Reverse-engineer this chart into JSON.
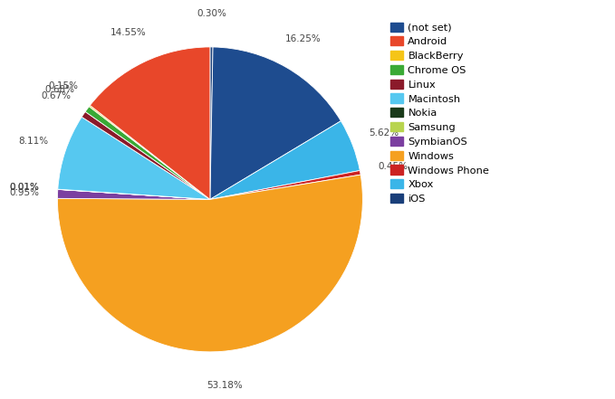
{
  "labels": [
    "(not set)",
    "Android",
    "BlackBerry",
    "Chrome OS",
    "Linux",
    "Macintosh",
    "Nokia",
    "Samsung",
    "SymbianOS",
    "Windows",
    "Windows Phone",
    "Xbox",
    "iOS"
  ],
  "values": [
    16.25,
    14.55,
    0.15,
    0.68,
    0.67,
    8.11,
    0.01,
    0.01,
    0.95,
    53.18,
    0.45,
    5.62,
    0.3
  ],
  "colors": [
    "#1e4c8f",
    "#e8472a",
    "#f5c518",
    "#3aaa35",
    "#8b1a2a",
    "#56c8f0",
    "#1a3a1a",
    "#b8d44e",
    "#7b3fa0",
    "#f5a020",
    "#cc2222",
    "#3ab5e8",
    "#1a3f7a"
  ],
  "display_pcts": [
    "16.25%",
    "14.55%",
    "0.15%",
    "0.68%",
    "0.67%",
    "8.11%",
    "0.01%",
    "0.01%",
    "0.95%",
    "53.18%",
    "0.45%",
    "5.62%",
    "0.30%"
  ],
  "legend_labels": [
    "(not set)",
    "Android",
    "BlackBerry",
    "Chrome OS",
    "Linux",
    "Macintosh",
    "Nokia",
    "Samsung",
    "SymbianOS",
    "Windows",
    "Windows Phone",
    "Xbox",
    "iOS"
  ],
  "ordered_labels": [
    "iOS",
    "(not set)",
    "Xbox",
    "Windows Phone",
    "Windows",
    "SymbianOS",
    "Nokia",
    "Samsung",
    "Macintosh",
    "Linux",
    "Chrome OS",
    "BlackBerry",
    "Android"
  ],
  "background_color": "#ffffff"
}
